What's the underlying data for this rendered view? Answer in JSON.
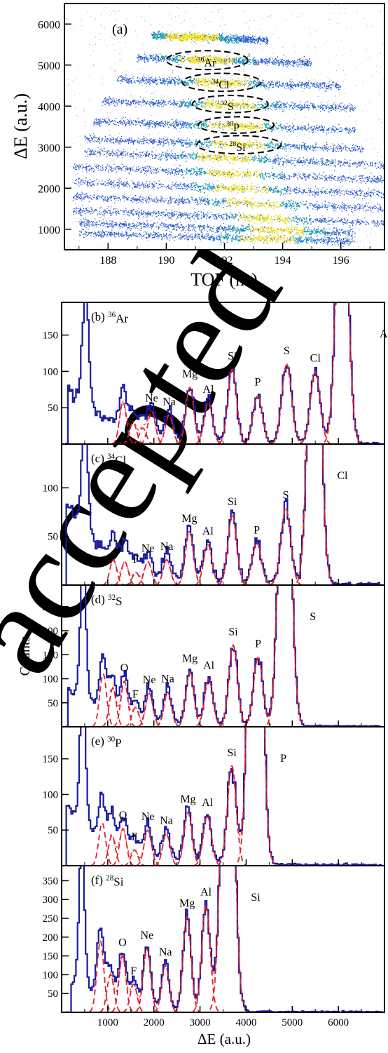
{
  "watermark": "accepted",
  "colors": {
    "data": "#1a1a9e",
    "fit": "#e0202a",
    "scatter_low": "#2050c8",
    "scatter_mid": "#20b0b0",
    "scatter_high": "#f0e020",
    "frame": "#000000",
    "watermark": "#e8e8e8"
  },
  "chart_data": [
    {
      "type": "scatter",
      "panel_label": "(a)",
      "xlabel": "TOF (ns)",
      "ylabel": "ΔE (a.u.)",
      "xlim": [
        186.5,
        197.5
      ],
      "ylim": [
        500,
        6500
      ],
      "xticks": [
        188,
        190,
        192,
        194,
        196
      ],
      "yticks": [
        1000,
        2000,
        3000,
        4000,
        5000,
        6000
      ],
      "ellipses": [
        {
          "label": "³⁶Ar",
          "x": 191.4,
          "y": 5120,
          "rx": 1.4,
          "ry": 230
        },
        {
          "label": "³⁴Cl",
          "x": 191.9,
          "y": 4580,
          "rx": 1.35,
          "ry": 220
        },
        {
          "label": "³²S",
          "x": 192.2,
          "y": 4050,
          "rx": 1.3,
          "ry": 210
        },
        {
          "label": "³⁰P",
          "x": 192.4,
          "y": 3540,
          "rx": 1.3,
          "ry": 200
        },
        {
          "label": "²⁸Si",
          "x": 192.5,
          "y": 3060,
          "rx": 1.45,
          "ry": 220
        }
      ],
      "bands": [
        {
          "x0": 187.0,
          "x1": 196.5,
          "y0": 900,
          "y1": 700,
          "peak": 193.5
        },
        {
          "x0": 187.0,
          "x1": 196.5,
          "y0": 1150,
          "y1": 900,
          "peak": 193.8
        },
        {
          "x0": 186.8,
          "x1": 197.5,
          "y0": 1450,
          "y1": 1150,
          "peak": 193.4
        },
        {
          "x0": 186.8,
          "x1": 197.5,
          "y0": 1800,
          "y1": 1500,
          "peak": 193.0
        },
        {
          "x0": 186.8,
          "x1": 197.5,
          "y0": 2150,
          "y1": 1850,
          "peak": 192.6
        },
        {
          "x0": 186.8,
          "x1": 197.5,
          "y0": 2520,
          "y1": 2200,
          "peak": 192.3
        },
        {
          "x0": 187.2,
          "x1": 197.5,
          "y0": 2880,
          "y1": 2560,
          "peak": 192.0
        },
        {
          "x0": 187.2,
          "x1": 196.8,
          "y0": 3200,
          "y1": 2950,
          "peak": 192.5
        },
        {
          "x0": 187.5,
          "x1": 196.5,
          "y0": 3620,
          "y1": 3420,
          "peak": 192.4
        },
        {
          "x0": 187.8,
          "x1": 196.5,
          "y0": 4120,
          "y1": 3950,
          "peak": 192.2
        },
        {
          "x0": 188.3,
          "x1": 196.0,
          "y0": 4650,
          "y1": 4480,
          "peak": 191.9
        },
        {
          "x0": 189.0,
          "x1": 195.0,
          "y0": 5180,
          "y1": 5050,
          "peak": 191.4
        },
        {
          "x0": 189.5,
          "x1": 193.5,
          "y0": 5720,
          "y1": 5600,
          "peak": 190.9
        }
      ]
    },
    {
      "type": "line",
      "panel_label": "(b)",
      "nucleus_mass": "36",
      "nucleus": "Ar",
      "xlim": [
        0,
        7000
      ],
      "ylim": [
        0,
        195
      ],
      "yticks": [
        50,
        100,
        150
      ],
      "peaks": [
        {
          "label": "",
          "x": 520,
          "h": 180,
          "sigma": 60,
          "fit": false
        },
        {
          "label": "",
          "x": 1330,
          "h": 58,
          "sigma": 75,
          "fit": true
        },
        {
          "label": "",
          "x": 1550,
          "h": 30,
          "sigma": 75,
          "fit": true
        },
        {
          "label": "",
          "x": 1760,
          "h": 22,
          "sigma": 75,
          "fit": true
        },
        {
          "label": "Ne",
          "x": 1950,
          "h": 45,
          "sigma": 80,
          "fit": true
        },
        {
          "label": "Na",
          "x": 2330,
          "h": 40,
          "sigma": 80,
          "fit": true
        },
        {
          "label": "Mg",
          "x": 2780,
          "h": 78,
          "sigma": 85,
          "fit": true
        },
        {
          "label": "Al",
          "x": 3180,
          "h": 57,
          "sigma": 90,
          "fit": true
        },
        {
          "label": "Si",
          "x": 3700,
          "h": 103,
          "sigma": 95,
          "fit": true
        },
        {
          "label": "P",
          "x": 4250,
          "h": 67,
          "sigma": 100,
          "fit": true
        },
        {
          "label": "S",
          "x": 4880,
          "h": 110,
          "sigma": 105,
          "fit": true
        },
        {
          "label": "Cl",
          "x": 5500,
          "h": 100,
          "sigma": 105,
          "fit": true
        },
        {
          "label": "Ar",
          "x": 6080,
          "h": 420,
          "sigma": 120,
          "fit": true
        }
      ],
      "background": {
        "start": 120,
        "decay": 900,
        "tail_end": 6900
      }
    },
    {
      "type": "line",
      "panel_label": "(c)",
      "nucleus_mass": "34",
      "nucleus": "Cl",
      "xlim": [
        0,
        7000
      ],
      "ylim": [
        0,
        145
      ],
      "yticks": [
        50,
        100
      ],
      "peaks": [
        {
          "label": "",
          "x": 500,
          "h": 122,
          "sigma": 60,
          "fit": false
        },
        {
          "label": "",
          "x": 1120,
          "h": 26,
          "sigma": 75,
          "fit": true
        },
        {
          "label": "",
          "x": 1370,
          "h": 24,
          "sigma": 75,
          "fit": true
        },
        {
          "label": "F",
          "x": 1610,
          "h": 13,
          "sigma": 75,
          "fit": true
        },
        {
          "label": "Ne",
          "x": 1870,
          "h": 24,
          "sigma": 80,
          "fit": true
        },
        {
          "label": "Na",
          "x": 2280,
          "h": 26,
          "sigma": 80,
          "fit": true
        },
        {
          "label": "Mg",
          "x": 2770,
          "h": 55,
          "sigma": 85,
          "fit": true
        },
        {
          "label": "Al",
          "x": 3170,
          "h": 42,
          "sigma": 90,
          "fit": true
        },
        {
          "label": "Si",
          "x": 3700,
          "h": 72,
          "sigma": 95,
          "fit": true
        },
        {
          "label": "P",
          "x": 4230,
          "h": 43,
          "sigma": 100,
          "fit": true
        },
        {
          "label": "S",
          "x": 4860,
          "h": 79,
          "sigma": 105,
          "fit": true
        },
        {
          "label": "Cl",
          "x": 5480,
          "h": 420,
          "sigma": 120,
          "fit": true
        }
      ],
      "background": {
        "start": 80,
        "decay": 900,
        "tail_end": 6900
      }
    },
    {
      "type": "line",
      "panel_label": "(d)",
      "nucleus_mass": "32",
      "nucleus": "S",
      "xlim": [
        0,
        7000
      ],
      "ylim": [
        0,
        295
      ],
      "yticks": [
        50,
        100,
        150,
        200,
        250
      ],
      "ylabel": "Counts",
      "peaks": [
        {
          "label": "",
          "x": 470,
          "h": 290,
          "sigma": 60,
          "fit": false
        },
        {
          "label": "",
          "x": 900,
          "h": 110,
          "sigma": 75,
          "fit": true
        },
        {
          "label": "",
          "x": 1110,
          "h": 80,
          "sigma": 75,
          "fit": true
        },
        {
          "label": "O",
          "x": 1360,
          "h": 95,
          "sigma": 75,
          "fit": true
        },
        {
          "label": "F",
          "x": 1600,
          "h": 40,
          "sigma": 75,
          "fit": true
        },
        {
          "label": "Ne",
          "x": 1900,
          "h": 70,
          "sigma": 80,
          "fit": true
        },
        {
          "label": "Na",
          "x": 2300,
          "h": 72,
          "sigma": 80,
          "fit": true
        },
        {
          "label": "Mg",
          "x": 2780,
          "h": 115,
          "sigma": 85,
          "fit": true
        },
        {
          "label": "Al",
          "x": 3190,
          "h": 100,
          "sigma": 90,
          "fit": true
        },
        {
          "label": "Si",
          "x": 3720,
          "h": 170,
          "sigma": 95,
          "fit": true
        },
        {
          "label": "P",
          "x": 4260,
          "h": 145,
          "sigma": 100,
          "fit": true
        },
        {
          "label": "S",
          "x": 4840,
          "h": 800,
          "sigma": 120,
          "fit": true
        }
      ],
      "background": {
        "start": 120,
        "decay": 900,
        "tail_end": 6900
      }
    },
    {
      "type": "line",
      "panel_label": "(e)",
      "nucleus_mass": "30",
      "nucleus": "P",
      "xlim": [
        0,
        7000
      ],
      "ylim": [
        0,
        195
      ],
      "yticks": [
        50,
        100,
        150
      ],
      "peaks": [
        {
          "label": "",
          "x": 460,
          "h": 190,
          "sigma": 60,
          "fit": false
        },
        {
          "label": "",
          "x": 880,
          "h": 60,
          "sigma": 75,
          "fit": true
        },
        {
          "label": "",
          "x": 1090,
          "h": 42,
          "sigma": 75,
          "fit": true
        },
        {
          "label": "O",
          "x": 1330,
          "h": 52,
          "sigma": 75,
          "fit": true
        },
        {
          "label": "F",
          "x": 1580,
          "h": 22,
          "sigma": 75,
          "fit": true
        },
        {
          "label": "Ne",
          "x": 1870,
          "h": 50,
          "sigma": 80,
          "fit": true
        },
        {
          "label": "Na",
          "x": 2270,
          "h": 45,
          "sigma": 80,
          "fit": true
        },
        {
          "label": "Mg",
          "x": 2740,
          "h": 75,
          "sigma": 85,
          "fit": true
        },
        {
          "label": "Al",
          "x": 3160,
          "h": 70,
          "sigma": 90,
          "fit": true
        },
        {
          "label": "Si",
          "x": 3690,
          "h": 140,
          "sigma": 95,
          "fit": true
        },
        {
          "label": "P",
          "x": 4200,
          "h": 800,
          "sigma": 120,
          "fit": true
        }
      ],
      "background": {
        "start": 100,
        "decay": 900,
        "tail_end": 6900
      }
    },
    {
      "type": "line",
      "panel_label": "(f)",
      "nucleus_mass": "28",
      "nucleus": "Si",
      "xlim": [
        0,
        7000
      ],
      "ylim": [
        0,
        390
      ],
      "yticks": [
        50,
        100,
        150,
        200,
        250,
        300,
        350
      ],
      "xlabel": "ΔE (a.u.)",
      "xticks": [
        1000,
        2000,
        3000,
        4000,
        5000,
        6000
      ],
      "peaks": [
        {
          "label": "",
          "x": 440,
          "h": 390,
          "sigma": 60,
          "fit": false
        },
        {
          "label": "",
          "x": 840,
          "h": 190,
          "sigma": 75,
          "fit": true
        },
        {
          "label": "",
          "x": 1060,
          "h": 100,
          "sigma": 75,
          "fit": true
        },
        {
          "label": "O",
          "x": 1320,
          "h": 150,
          "sigma": 75,
          "fit": true
        },
        {
          "label": "F",
          "x": 1560,
          "h": 75,
          "sigma": 75,
          "fit": true
        },
        {
          "label": "Ne",
          "x": 1850,
          "h": 170,
          "sigma": 80,
          "fit": true
        },
        {
          "label": "Na",
          "x": 2250,
          "h": 125,
          "sigma": 80,
          "fit": true
        },
        {
          "label": "Mg",
          "x": 2720,
          "h": 255,
          "sigma": 85,
          "fit": true
        },
        {
          "label": "Al",
          "x": 3130,
          "h": 285,
          "sigma": 90,
          "fit": true
        },
        {
          "label": "Si",
          "x": 3600,
          "h": 1200,
          "sigma": 120,
          "fit": true
        }
      ],
      "background": {
        "start": 200,
        "decay": 800,
        "tail_end": 6900
      }
    }
  ]
}
